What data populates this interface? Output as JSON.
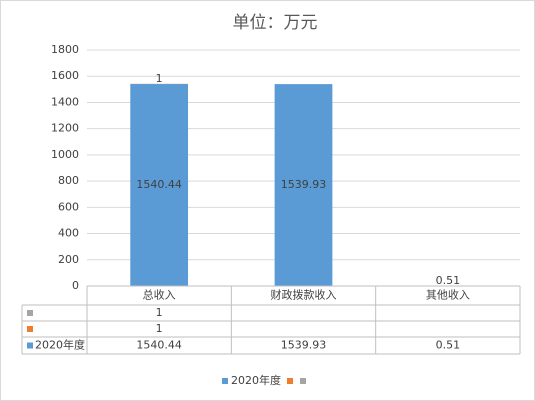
{
  "chart_data": {
    "type": "stacked_bar",
    "title": "单位：万元",
    "categories": [
      "总收入",
      "财政拨款收入",
      "其他收入"
    ],
    "series": [
      {
        "name": "2020年度",
        "color": "#5b9bd5",
        "values": [
          1540.44,
          1539.93,
          0.51
        ],
        "show_labels": true
      },
      {
        "color": "#ed7d31",
        "values": [
          1,
          null,
          null
        ],
        "show_labels": false
      },
      {
        "color": "#a5a5a5",
        "values": [
          1,
          null,
          null
        ],
        "show_labels": true
      }
    ],
    "ylim": [
      0,
      1800
    ],
    "yticks": [
      0,
      200,
      400,
      600,
      800,
      1000,
      1200,
      1400,
      1600,
      1800
    ],
    "grid": true,
    "data_table": true,
    "legend": "bottom"
  }
}
